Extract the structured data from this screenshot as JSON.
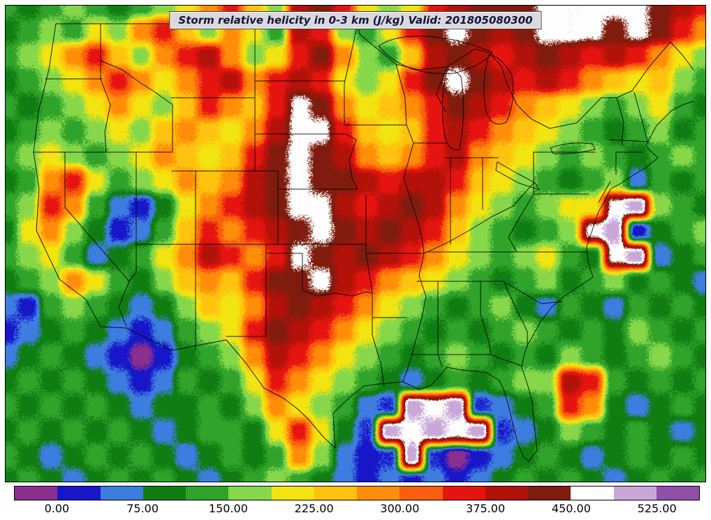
{
  "figure": {
    "title": "Storm relative helicity in 0-3 km (J/kg) Valid: 201805080300"
  },
  "chart_data": {
    "type": "heatmap",
    "title": "Storm relative helicity in 0-3 km (J/kg) Valid: 201805080300",
    "parameter": "Storm relative helicity 0-3 km",
    "units": "J/kg",
    "valid_time": "201805080300",
    "region": "Continental United States",
    "legend_position": "bottom",
    "colorbar": {
      "orientation": "horizontal",
      "tick_labels": [
        "0.00",
        "75.00",
        "150.00",
        "225.00",
        "300.00",
        "375.00",
        "450.00",
        "525.00"
      ],
      "tick_values": [
        0,
        75,
        150,
        225,
        300,
        375,
        450,
        525
      ],
      "level_min": -37.5,
      "level_max": 562.5,
      "level_step": 37.5,
      "colors": [
        "#8b2f8f",
        "#1717c9",
        "#3d7de0",
        "#0f7d12",
        "#2fa32a",
        "#86d84a",
        "#f2e410",
        "#ffc20e",
        "#ff8d0a",
        "#f95d0d",
        "#e61410",
        "#b31209",
        "#801c0e",
        "#fdfdfd",
        "#c9a8d8",
        "#9050a8"
      ]
    },
    "grid": {
      "cols": 32,
      "rows": 20,
      "comment_values": "approximate helicity field (J/kg), row 0 = north edge, col 0 = west edge",
      "values": [
        [
          130,
          95,
          130,
          170,
          130,
          95,
          130,
          170,
          205,
          280,
          355,
          240,
          170,
          395,
          430,
          355,
          205,
          170,
          205,
          355,
          395,
          430,
          430,
          430,
          468,
          475,
          475,
          470,
          468,
          430,
          395,
          355
        ],
        [
          95,
          130,
          170,
          130,
          205,
          170,
          280,
          355,
          240,
          170,
          280,
          205,
          130,
          395,
          355,
          170,
          130,
          205,
          355,
          430,
          468,
          430,
          395,
          430,
          468,
          475,
          468,
          430,
          468,
          430,
          355,
          280
        ],
        [
          130,
          170,
          205,
          280,
          355,
          240,
          170,
          280,
          355,
          395,
          280,
          170,
          205,
          355,
          430,
          280,
          170,
          130,
          240,
          395,
          430,
          395,
          355,
          395,
          430,
          395,
          355,
          395,
          355,
          280,
          205,
          170
        ],
        [
          95,
          130,
          170,
          205,
          280,
          355,
          280,
          205,
          280,
          355,
          395,
          280,
          355,
          395,
          355,
          205,
          170,
          205,
          355,
          430,
          468,
          430,
          395,
          355,
          395,
          355,
          280,
          240,
          205,
          240,
          170,
          130
        ],
        [
          130,
          95,
          130,
          170,
          205,
          280,
          205,
          170,
          240,
          355,
          280,
          240,
          355,
          468,
          430,
          280,
          205,
          240,
          280,
          355,
          430,
          395,
          355,
          280,
          240,
          205,
          170,
          130,
          170,
          205,
          130,
          95
        ],
        [
          95,
          130,
          170,
          130,
          170,
          205,
          170,
          240,
          280,
          240,
          205,
          280,
          395,
          468,
          468,
          355,
          240,
          205,
          240,
          355,
          395,
          355,
          280,
          240,
          205,
          170,
          130,
          95,
          130,
          170,
          95,
          130
        ],
        [
          130,
          170,
          205,
          170,
          130,
          170,
          205,
          280,
          240,
          205,
          240,
          355,
          430,
          468,
          430,
          395,
          280,
          240,
          280,
          355,
          395,
          280,
          240,
          205,
          170,
          130,
          170,
          130,
          95,
          130,
          170,
          130
        ],
        [
          95,
          130,
          280,
          355,
          205,
          130,
          170,
          205,
          280,
          240,
          280,
          395,
          430,
          468,
          430,
          430,
          395,
          355,
          395,
          395,
          355,
          240,
          205,
          170,
          130,
          95,
          130,
          170,
          55,
          130,
          95,
          130
        ],
        [
          130,
          170,
          355,
          280,
          130,
          55,
          20,
          95,
          205,
          280,
          355,
          395,
          430,
          468,
          468,
          395,
          355,
          395,
          430,
          395,
          280,
          205,
          170,
          130,
          170,
          205,
          205,
          468,
          505,
          170,
          130,
          95
        ],
        [
          95,
          205,
          280,
          170,
          95,
          20,
          55,
          130,
          240,
          355,
          280,
          355,
          395,
          430,
          468,
          430,
          395,
          430,
          395,
          355,
          240,
          170,
          130,
          95,
          130,
          170,
          468,
          505,
          20,
          95,
          130,
          170
        ],
        [
          130,
          170,
          205,
          130,
          55,
          95,
          130,
          205,
          280,
          395,
          355,
          280,
          355,
          468,
          430,
          395,
          430,
          395,
          355,
          280,
          205,
          170,
          130,
          170,
          205,
          130,
          95,
          468,
          505,
          55,
          95,
          130
        ],
        [
          95,
          130,
          170,
          280,
          205,
          130,
          95,
          170,
          240,
          280,
          240,
          355,
          430,
          430,
          468,
          395,
          355,
          280,
          240,
          205,
          170,
          130,
          95,
          130,
          170,
          95,
          130,
          170,
          95,
          130,
          95,
          55
        ],
        [
          55,
          20,
          130,
          170,
          130,
          95,
          55,
          95,
          170,
          240,
          205,
          280,
          395,
          430,
          395,
          355,
          280,
          205,
          170,
          130,
          95,
          130,
          170,
          95,
          55,
          130,
          95,
          55,
          130,
          95,
          130,
          95
        ],
        [
          20,
          55,
          95,
          130,
          95,
          55,
          20,
          55,
          130,
          170,
          205,
          355,
          430,
          395,
          355,
          280,
          205,
          170,
          130,
          95,
          130,
          95,
          130,
          170,
          130,
          95,
          130,
          95,
          170,
          130,
          95,
          130
        ],
        [
          55,
          95,
          130,
          95,
          55,
          20,
          -20,
          20,
          95,
          130,
          170,
          280,
          395,
          355,
          280,
          205,
          170,
          130,
          95,
          130,
          170,
          130,
          95,
          130,
          95,
          170,
          130,
          95,
          130,
          170,
          130,
          95
        ],
        [
          95,
          130,
          95,
          130,
          95,
          55,
          20,
          55,
          130,
          95,
          130,
          205,
          355,
          280,
          205,
          170,
          130,
          95,
          55,
          95,
          130,
          95,
          130,
          170,
          170,
          395,
          355,
          130,
          95,
          130,
          95,
          130
        ],
        [
          130,
          95,
          130,
          95,
          130,
          95,
          55,
          95,
          95,
          130,
          95,
          170,
          280,
          205,
          170,
          130,
          55,
          30,
          505,
          470,
          505,
          30,
          55,
          95,
          130,
          355,
          280,
          95,
          55,
          95,
          130,
          95
        ],
        [
          95,
          130,
          95,
          130,
          95,
          130,
          95,
          55,
          95,
          130,
          130,
          95,
          205,
          355,
          205,
          95,
          30,
          505,
          470,
          505,
          470,
          505,
          30,
          55,
          95,
          170,
          130,
          95,
          130,
          95,
          55,
          95
        ],
        [
          130,
          95,
          55,
          95,
          130,
          95,
          130,
          95,
          55,
          95,
          130,
          95,
          130,
          280,
          170,
          55,
          20,
          30,
          505,
          30,
          -20,
          20,
          55,
          95,
          130,
          95,
          55,
          95,
          130,
          95,
          130,
          95
        ],
        [
          95,
          130,
          95,
          55,
          95,
          130,
          95,
          130,
          95,
          55,
          95,
          130,
          170,
          130,
          95,
          55,
          20,
          55,
          20,
          55,
          20,
          55,
          95,
          130,
          95,
          130,
          95,
          55,
          95,
          130,
          95,
          130
        ]
      ]
    }
  }
}
